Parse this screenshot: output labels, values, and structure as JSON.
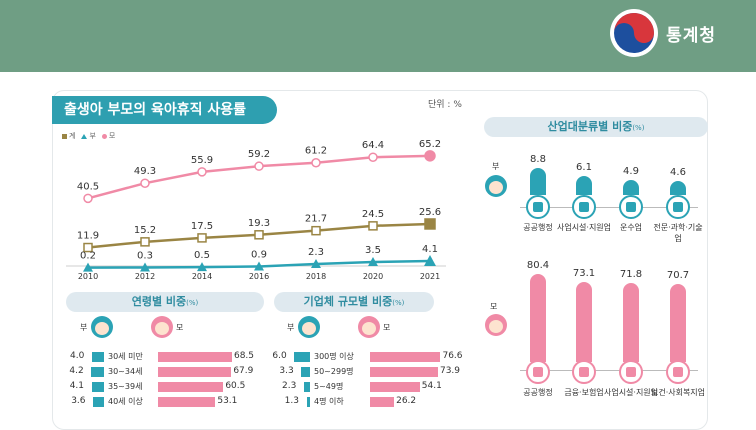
{
  "header": {
    "org_name": "통계청"
  },
  "main_title": "출생아 부모의 육아휴직 사용률",
  "unit": "단위 : %",
  "legend": {
    "total": "계",
    "father": "부",
    "mother": "모"
  },
  "colors": {
    "total": "#9a8544",
    "father": "#2ba3b5",
    "mother": "#f08aa6",
    "header": "#6f9e84"
  },
  "sections": {
    "age": {
      "title": "연령별 비중",
      "pct": "(%)",
      "father": "부",
      "mother": "모"
    },
    "size": {
      "title": "기업체 규모별 비중",
      "pct": "(%)",
      "father": "부",
      "mother": "모"
    },
    "industry": {
      "title": "산업대분류별 비중",
      "pct": "(%)",
      "father": "부",
      "mother": "모"
    }
  },
  "chart_data": [
    {
      "type": "line",
      "title": "출생아 부모의 육아휴직 사용률",
      "x": [
        "2010",
        "2012",
        "2014",
        "2016",
        "2018",
        "2020",
        "2021"
      ],
      "series": [
        {
          "name": "모",
          "values": [
            40.5,
            49.3,
            55.9,
            59.2,
            61.2,
            64.4,
            65.2
          ]
        },
        {
          "name": "계",
          "values": [
            11.9,
            15.2,
            17.5,
            19.3,
            21.7,
            24.5,
            25.6
          ]
        },
        {
          "name": "부",
          "values": [
            0.2,
            0.3,
            0.5,
            0.9,
            2.3,
            3.5,
            4.1
          ]
        }
      ]
    },
    {
      "type": "bar",
      "title": "연령별 비중",
      "categories": [
        "30세 미만",
        "30~34세",
        "35~39세",
        "40세 이상"
      ],
      "series": [
        {
          "name": "부",
          "values": [
            4.0,
            4.2,
            4.1,
            3.6
          ]
        },
        {
          "name": "모",
          "values": [
            68.5,
            67.9,
            60.5,
            53.1
          ]
        }
      ]
    },
    {
      "type": "bar",
      "title": "기업체 규모별 비중",
      "categories": [
        "300명 이상",
        "50~299명",
        "5~49명",
        "4명 이하"
      ],
      "series": [
        {
          "name": "부",
          "values": [
            6.0,
            3.3,
            2.3,
            1.3
          ]
        },
        {
          "name": "모",
          "values": [
            76.6,
            73.9,
            54.1,
            26.2
          ]
        }
      ]
    },
    {
      "type": "bar",
      "title": "산업대분류별 비중",
      "series": [
        {
          "name": "부",
          "categories": [
            "공공행정",
            "사업시설·지원업",
            "운수업",
            "전문·과학·기술업"
          ],
          "values": [
            8.8,
            6.1,
            4.9,
            4.6
          ]
        },
        {
          "name": "모",
          "categories": [
            "공공행정",
            "금융·보험업",
            "사업시설·지원업",
            "보건·사회복지업"
          ],
          "values": [
            80.4,
            73.1,
            71.8,
            70.7
          ]
        }
      ]
    }
  ]
}
